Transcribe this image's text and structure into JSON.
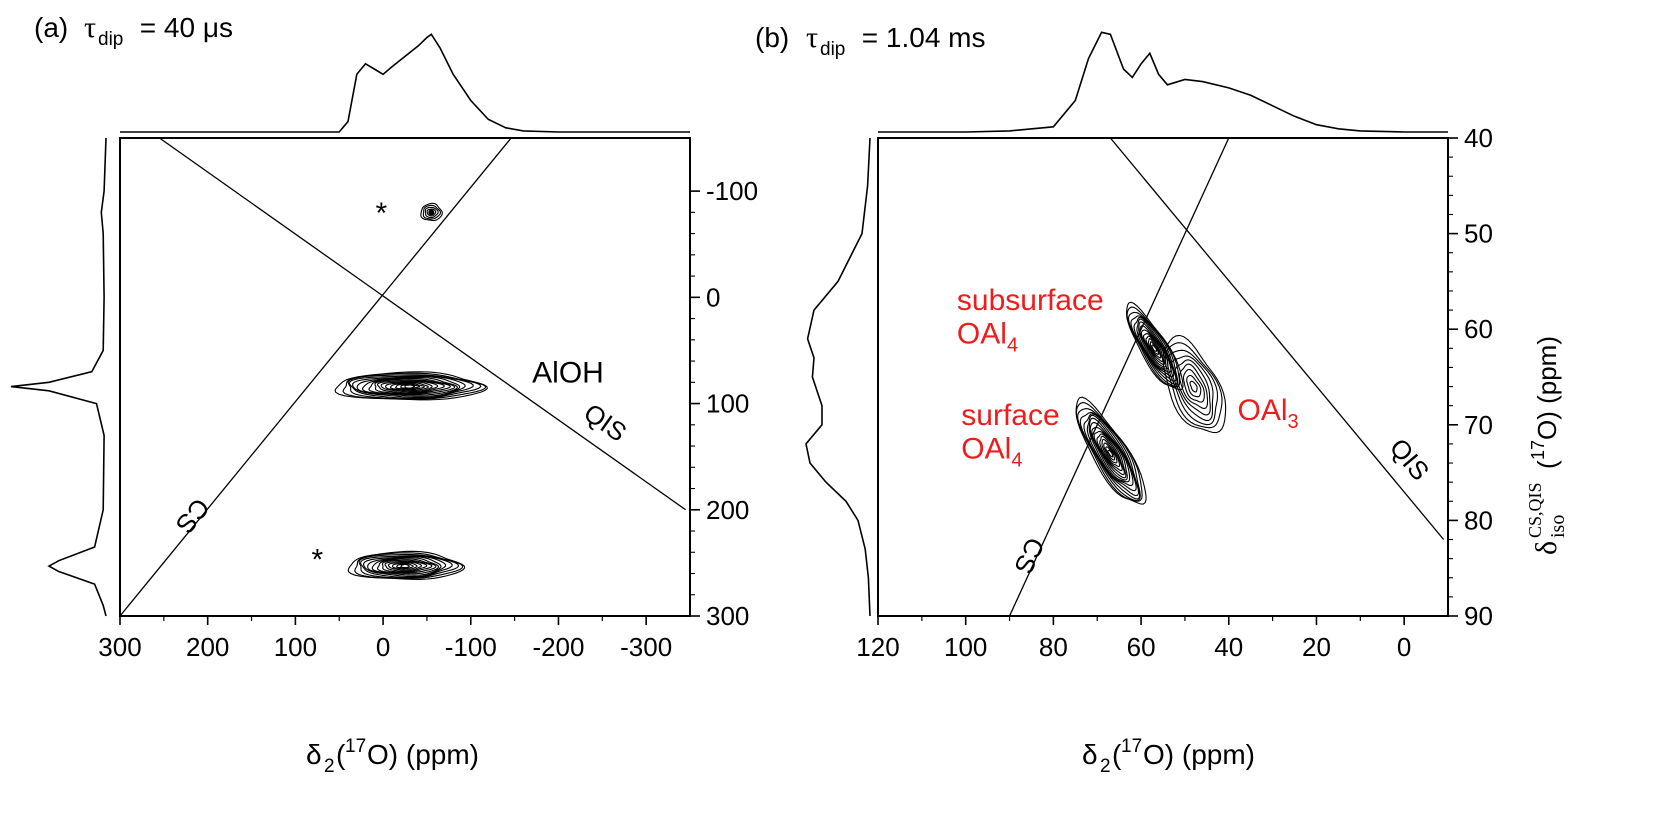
{
  "chart_data": [
    {
      "type": "contour",
      "panel_label": "(a)",
      "title_symbol": "τ",
      "title_subscript": "dip",
      "title_value": " = 40 μs",
      "xlabel_main": "δ",
      "xlabel_sub": "2",
      "xlabel_open": "(",
      "xlabel_iso": "17",
      "xlabel_rest": "O) (ppm)",
      "xlim": [
        300,
        -350
      ],
      "ylim": [
        -150,
        300
      ],
      "x_ticks": [
        300,
        200,
        100,
        0,
        -100,
        -200,
        -300
      ],
      "x_tick_labels": [
        "300",
        "200",
        "100",
        "0",
        "-100",
        "-200",
        "-300"
      ],
      "y_ticks": [
        -100,
        0,
        100,
        200,
        300
      ],
      "y_tick_labels": [
        "-100",
        "0",
        "100",
        "200",
        "300"
      ],
      "lines": [
        {
          "name": "CS",
          "label": "CS",
          "p1": [
            300,
            300
          ],
          "p2": [
            -146,
            -150
          ]
        },
        {
          "name": "QIS",
          "label": "QIS",
          "p1": [
            255,
            -150
          ],
          "p2": [
            -345,
            200
          ]
        }
      ],
      "peaks": [
        {
          "label": "",
          "x": -55,
          "y": -80,
          "sx": 12,
          "sy": 8,
          "levels": 5,
          "dot": true
        },
        {
          "label": "AlOH",
          "x": -30,
          "y": 84,
          "sx": 85,
          "sy": 13,
          "levels": 16,
          "dot": false
        },
        {
          "label": "",
          "x": -25,
          "y": 253,
          "sx": 65,
          "sy": 13,
          "levels": 14,
          "dot": false
        }
      ],
      "peak_annotations": [
        {
          "text": "AlOH",
          "x": -170,
          "y": 80
        },
        {
          "text": "*",
          "x": 2,
          "y": -70
        },
        {
          "text": "*",
          "x": 75,
          "y": 256
        }
      ],
      "top_projection": [
        [
          300,
          0
        ],
        [
          250,
          0
        ],
        [
          200,
          0
        ],
        [
          150,
          0
        ],
        [
          100,
          0
        ],
        [
          50,
          0
        ],
        [
          40,
          0.1
        ],
        [
          30,
          0.55
        ],
        [
          20,
          0.65
        ],
        [
          10,
          0.6
        ],
        [
          0,
          0.55
        ],
        [
          -10,
          0.62
        ],
        [
          -25,
          0.72
        ],
        [
          -40,
          0.82
        ],
        [
          -50,
          0.9
        ],
        [
          -55,
          0.93
        ],
        [
          -65,
          0.8
        ],
        [
          -80,
          0.55
        ],
        [
          -100,
          0.3
        ],
        [
          -120,
          0.12
        ],
        [
          -140,
          0.04
        ],
        [
          -160,
          0.01
        ],
        [
          -200,
          0
        ],
        [
          -300,
          0
        ],
        [
          -350,
          0
        ]
      ],
      "side_projection": [
        [
          -150,
          0
        ],
        [
          -100,
          0.02
        ],
        [
          -80,
          0.05
        ],
        [
          -60,
          0.03
        ],
        [
          0,
          0.02
        ],
        [
          50,
          0.03
        ],
        [
          70,
          0.15
        ],
        [
          80,
          0.6
        ],
        [
          84,
          1.0
        ],
        [
          88,
          0.6
        ],
        [
          100,
          0.1
        ],
        [
          130,
          0.02
        ],
        [
          200,
          0.03
        ],
        [
          235,
          0.12
        ],
        [
          248,
          0.5
        ],
        [
          253,
          0.6
        ],
        [
          258,
          0.5
        ],
        [
          270,
          0.12
        ],
        [
          290,
          0.03
        ],
        [
          300,
          0
        ]
      ]
    },
    {
      "type": "contour",
      "panel_label": "(b)",
      "title_symbol": "τ",
      "title_subscript": "dip",
      "title_value": " = 1.04 ms",
      "xlabel_main": "δ",
      "xlabel_sub": "2",
      "xlabel_open": "(",
      "xlabel_iso": "17",
      "xlabel_rest": "O) (ppm)",
      "ylabel_main": "δ",
      "ylabel_sub": "iso",
      "ylabel_sup": "CS,QIS",
      "ylabel_rest": "(",
      "ylabel_iso": "17",
      "ylabel_unit": "O) (ppm)",
      "xlim": [
        120,
        -10
      ],
      "ylim": [
        40,
        90
      ],
      "x_ticks": [
        120,
        100,
        80,
        60,
        40,
        20,
        0
      ],
      "x_tick_labels": [
        "120",
        "100",
        "80",
        "60",
        "40",
        "20",
        "0"
      ],
      "y_ticks": [
        40,
        50,
        60,
        70,
        80,
        90
      ],
      "y_tick_labels": [
        "40",
        "50",
        "60",
        "70",
        "80",
        "90"
      ],
      "lines": [
        {
          "name": "CS",
          "label": "CS",
          "p1": [
            90,
            90
          ],
          "p2": [
            40,
            40
          ]
        },
        {
          "name": "QIS",
          "label": "QIS",
          "p1": [
            67,
            40
          ],
          "p2": [
            -9,
            82
          ]
        }
      ],
      "peaks": [
        {
          "label": "subsurface OAl4",
          "x": 57,
          "y": 62,
          "sx": 3.5,
          "sy": 4.5,
          "levels": 14,
          "dot": false
        },
        {
          "label": "surface OAl4",
          "x": 67,
          "y": 73,
          "sx": 4.5,
          "sy": 5.5,
          "levels": 16,
          "dot": false
        },
        {
          "label": "OAl3",
          "x": 48,
          "y": 66,
          "sx": 6,
          "sy": 5,
          "levels": 9,
          "dot": false
        }
      ],
      "peak_annotations": [
        {
          "text": "subsurface",
          "sub": "",
          "x": 102,
          "y": 58
        },
        {
          "text": "OAl",
          "sub": "4",
          "x": 102,
          "y": 61.5
        },
        {
          "text": "surface",
          "sub": "",
          "x": 101,
          "y": 70
        },
        {
          "text": "OAl",
          "sub": "4",
          "x": 101,
          "y": 73.5
        },
        {
          "text": "OAl",
          "sub": "3",
          "x": 38,
          "y": 69.5
        }
      ],
      "top_projection": [
        [
          120,
          0
        ],
        [
          100,
          0
        ],
        [
          90,
          0.01
        ],
        [
          80,
          0.05
        ],
        [
          75,
          0.3
        ],
        [
          72,
          0.7
        ],
        [
          69,
          0.95
        ],
        [
          67,
          0.93
        ],
        [
          64,
          0.6
        ],
        [
          62,
          0.52
        ],
        [
          60,
          0.65
        ],
        [
          58,
          0.75
        ],
        [
          56,
          0.55
        ],
        [
          54,
          0.45
        ],
        [
          50,
          0.5
        ],
        [
          46,
          0.48
        ],
        [
          40,
          0.42
        ],
        [
          35,
          0.35
        ],
        [
          30,
          0.25
        ],
        [
          25,
          0.15
        ],
        [
          20,
          0.07
        ],
        [
          15,
          0.03
        ],
        [
          10,
          0.01
        ],
        [
          0,
          0
        ],
        [
          -10,
          0
        ]
      ],
      "side_projection": [
        [
          40,
          0
        ],
        [
          45,
          0.03
        ],
        [
          50,
          0.1
        ],
        [
          55,
          0.4
        ],
        [
          58,
          0.7
        ],
        [
          61,
          0.78
        ],
        [
          63,
          0.7
        ],
        [
          65,
          0.72
        ],
        [
          68,
          0.6
        ],
        [
          70,
          0.6
        ],
        [
          72,
          0.8
        ],
        [
          74,
          0.75
        ],
        [
          76,
          0.55
        ],
        [
          78,
          0.3
        ],
        [
          80,
          0.15
        ],
        [
          83,
          0.06
        ],
        [
          86,
          0.02
        ],
        [
          90,
          0
        ]
      ]
    }
  ]
}
